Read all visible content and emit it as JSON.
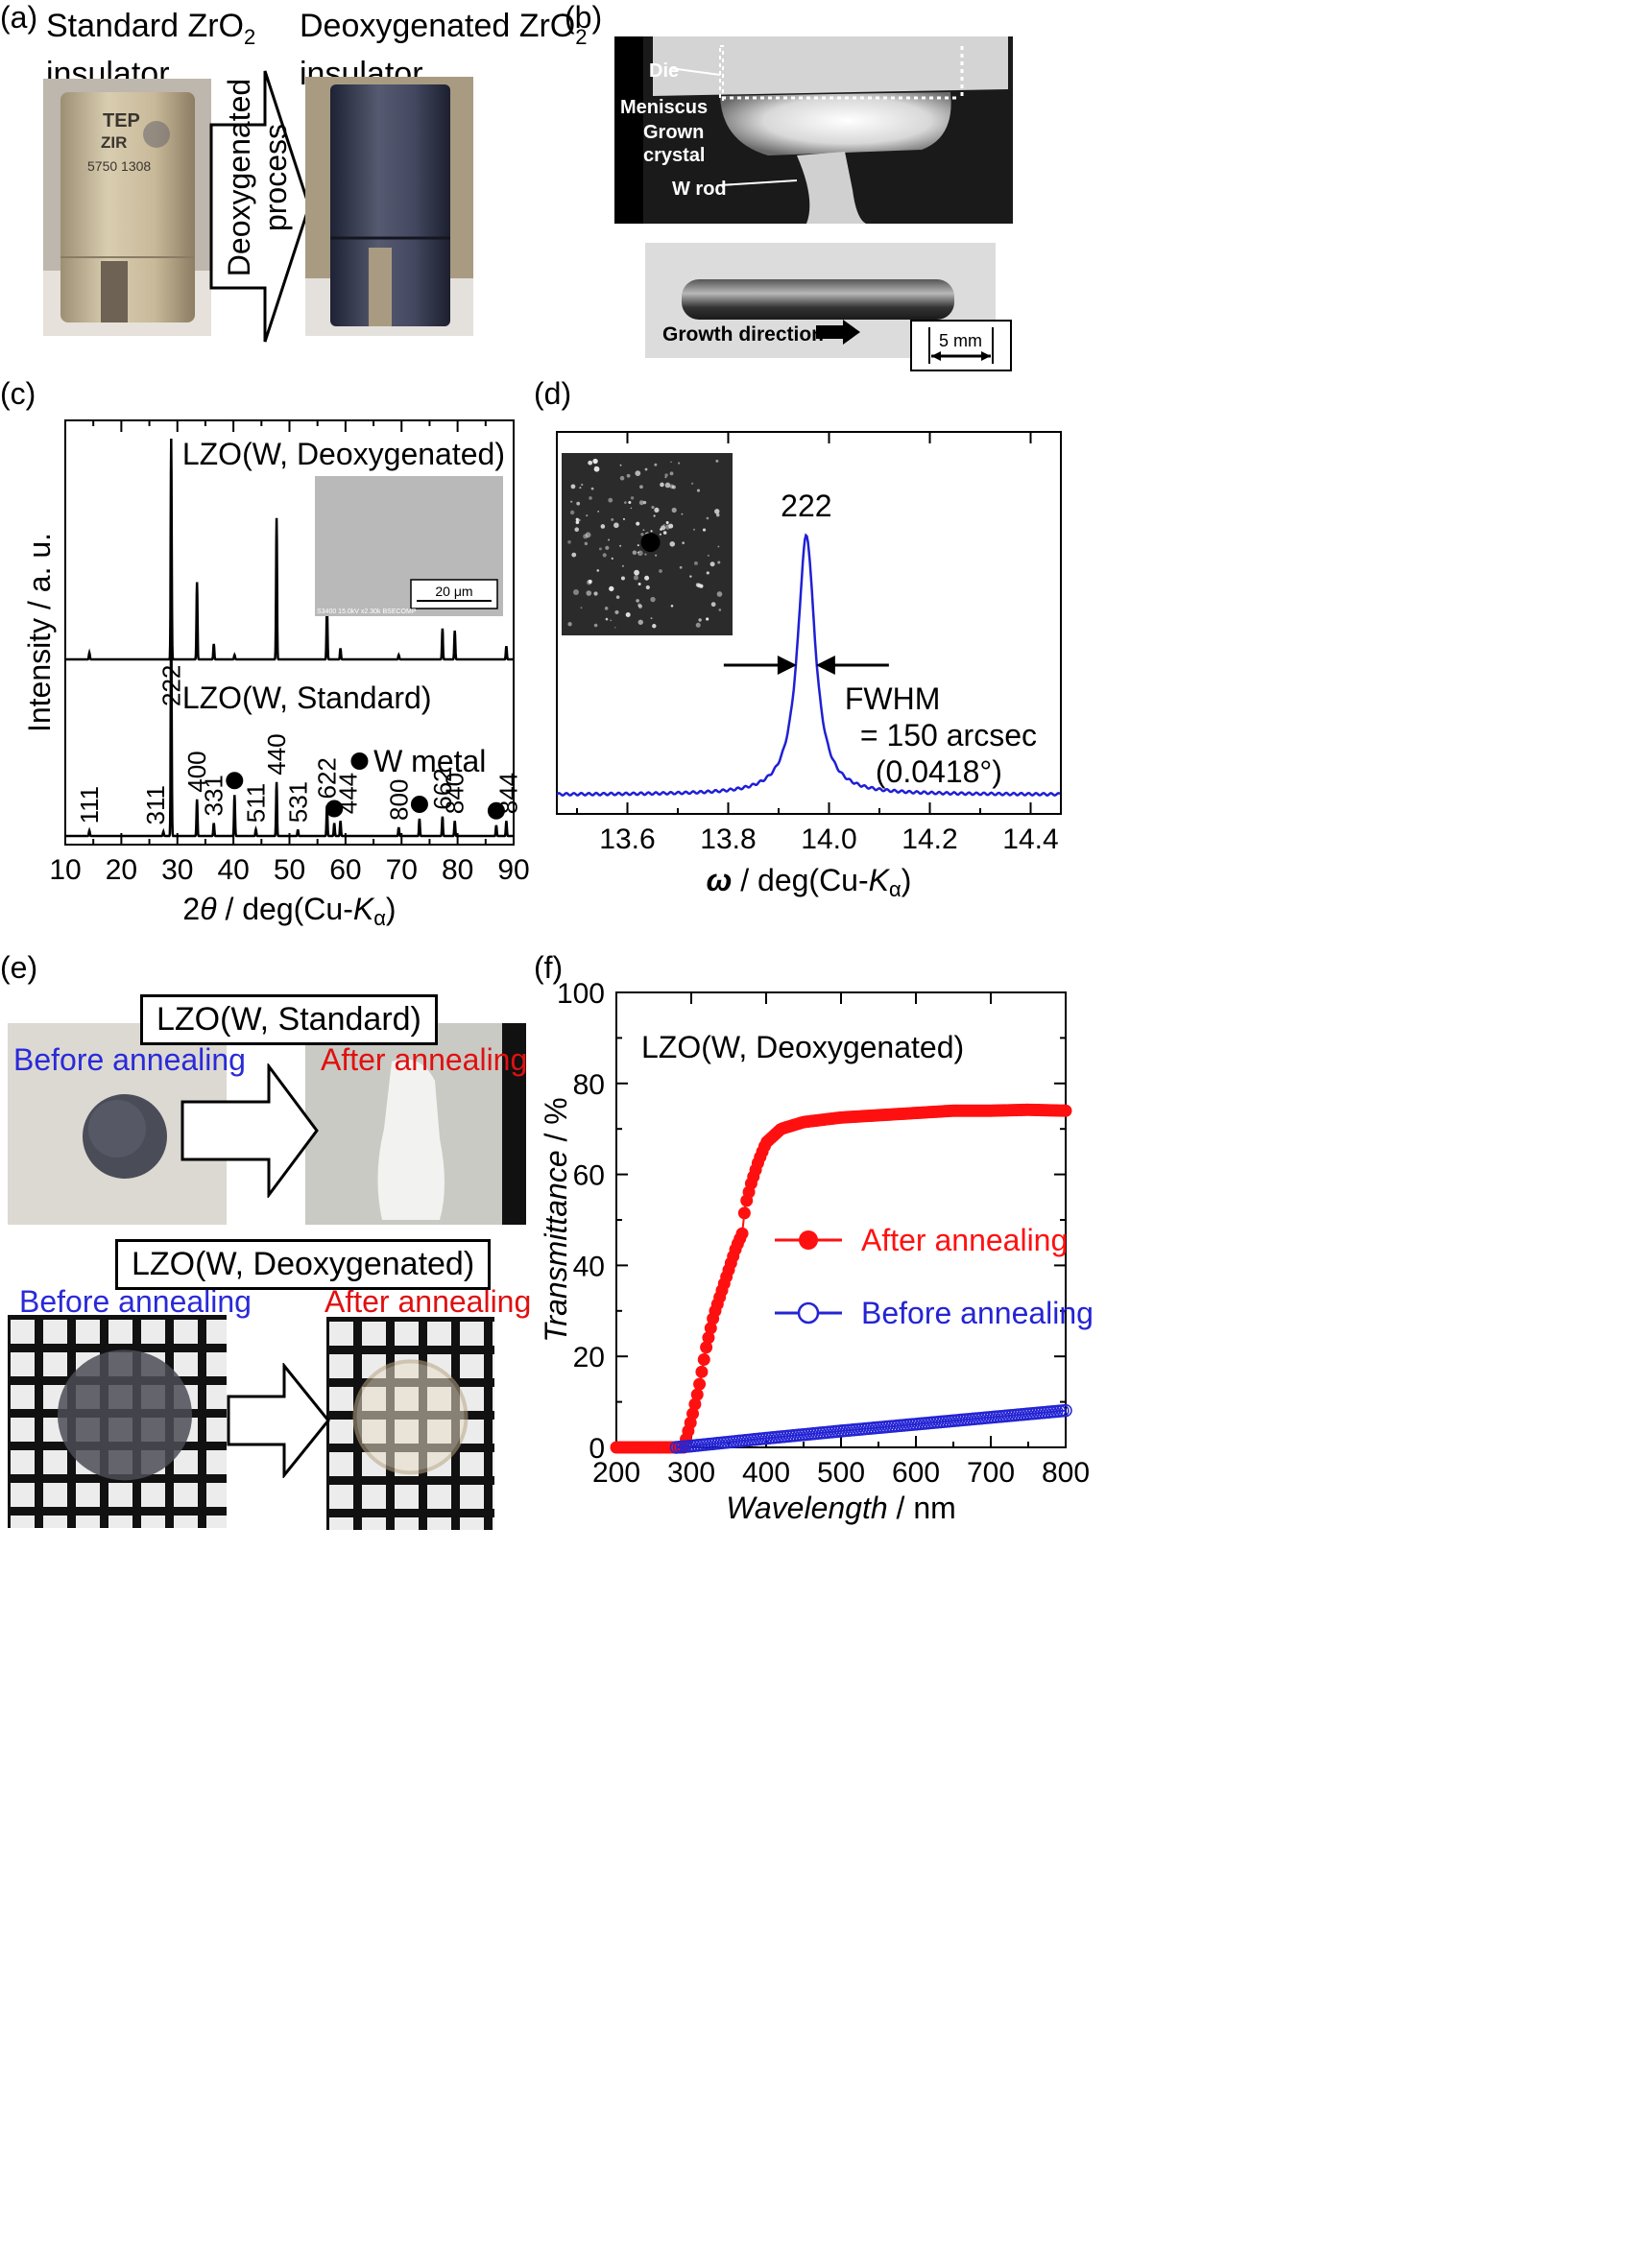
{
  "panels": {
    "a": {
      "label": "(a)",
      "left_title_1": "Standard ZrO",
      "left_title_sub": "2",
      "left_title_2": "insulator",
      "right_title_1": "Deoxygenated ZrO",
      "right_title_sub": "2",
      "right_title_2": "insulator",
      "arrow_text_1": "Deoxygenated",
      "arrow_text_2": "process",
      "insulator_print_1": "TEP",
      "insulator_print_2": "ZIR",
      "insulator_print_3": "5750 1308"
    },
    "b": {
      "label": "(b)",
      "die": "Die",
      "meniscus": "Meniscus",
      "grown": "Grown",
      "crystal": "crystal",
      "wrod": "W rod",
      "growth_direction": "Growth direction",
      "scale": "5 mm"
    },
    "c": {
      "label": "(c)"
    },
    "d": {
      "label": "(d)"
    },
    "e": {
      "label": "(e)",
      "standard_box": "LZO(W, Standard)",
      "deoxy_box": "LZO(W, Deoxygenated)",
      "before_1": "Before annealing",
      "after_1": "After annealing",
      "before_2": "Before annealing",
      "after_2": "After annealing",
      "before_color": "#2a2ad8",
      "after_color": "#e01010"
    },
    "f": {
      "label": "(f)"
    }
  },
  "chart_data": [
    {
      "id": "c",
      "type": "line",
      "xlabel_pre": "2",
      "xlabel_theta": "θ",
      "xlabel_post": " / deg(Cu-",
      "xlabel_k": "K",
      "xlabel_alpha": "α",
      "xlabel_close": ")",
      "ylabel": "Intensity / a. u.",
      "xlim": [
        10,
        90
      ],
      "xticks": [
        10,
        20,
        30,
        40,
        50,
        60,
        70,
        80,
        90
      ],
      "series": [
        {
          "name": "LZO(W, Deoxygenated)",
          "baseline": 0.0,
          "peaks": [
            [
              14.3,
              0.03
            ],
            [
              28.9,
              1.0
            ],
            [
              33.5,
              0.35
            ],
            [
              36.5,
              0.07
            ],
            [
              40.2,
              0.02
            ],
            [
              47.7,
              0.64
            ],
            [
              56.7,
              0.25
            ],
            [
              59.1,
              0.05
            ],
            [
              69.5,
              0.02
            ],
            [
              77.3,
              0.14
            ],
            [
              79.5,
              0.13
            ],
            [
              88.7,
              0.06
            ]
          ]
        },
        {
          "name": "LZO(W, Standard)",
          "baseline": 0.0,
          "peaks": [
            [
              14.3,
              0.025
            ],
            [
              27.5,
              0.02
            ],
            [
              28.9,
              1.0
            ],
            [
              33.5,
              0.17
            ],
            [
              36.5,
              0.06
            ],
            [
              40.2,
              0.19
            ],
            [
              44.0,
              0.03
            ],
            [
              47.7,
              0.25
            ],
            [
              51.5,
              0.03
            ],
            [
              56.7,
              0.14
            ],
            [
              58.0,
              0.06
            ],
            [
              59.1,
              0.07
            ],
            [
              69.5,
              0.04
            ],
            [
              73.2,
              0.08
            ],
            [
              77.3,
              0.09
            ],
            [
              79.5,
              0.07
            ],
            [
              86.9,
              0.05
            ],
            [
              88.7,
              0.07
            ]
          ]
        }
      ],
      "peak_labels": [
        {
          "text": "111",
          "x": 14.3
        },
        {
          "text": "311",
          "x": 27.5
        },
        {
          "text": "222",
          "x": 28.9
        },
        {
          "text": "400",
          "x": 33.5
        },
        {
          "text": "331",
          "x": 36.5
        },
        {
          "text": "511",
          "x": 44.0
        },
        {
          "text": "440",
          "x": 47.7
        },
        {
          "text": "531",
          "x": 51.5
        },
        {
          "text": "622",
          "x": 56.7
        },
        {
          "text": "444",
          "x": 59.1
        },
        {
          "text": "800",
          "x": 69.5
        },
        {
          "text": "662",
          "x": 77.3
        },
        {
          "text": "840",
          "x": 79.5
        },
        {
          "text": "844",
          "x": 88.7
        }
      ],
      "w_metal_markers": [
        40.2,
        58.0,
        73.2,
        86.9
      ],
      "legend_text": "W metal",
      "inset_scale": "20 μm",
      "inset_caption": "S3400 15.0kV x2.30k BSECOMP"
    },
    {
      "id": "d",
      "type": "line",
      "xlabel_omega": "ω",
      "xlabel_post": " / deg(Cu-",
      "xlabel_k": "K",
      "xlabel_alpha": "α",
      "xlabel_close": ")",
      "xlim": [
        13.46,
        14.46
      ],
      "xticks": [
        13.6,
        13.8,
        14.0,
        14.2,
        14.4
      ],
      "peak_center": 13.955,
      "fwhm_deg": 0.0418,
      "peak_label": "222",
      "annotation_1": "FWHM",
      "annotation_2": "= 150 arcsec",
      "annotation_3": "(0.0418°)",
      "line_color": "#1f1fd6"
    },
    {
      "id": "f",
      "type": "scatter",
      "title": "LZO(W, Deoxygenated)",
      "xlabel_italic": "Wavelength",
      "xlabel_unit": " / nm",
      "ylabel_italic": "Transmittance",
      "ylabel_unit": " / %",
      "xlim": [
        200,
        800
      ],
      "ylim": [
        0,
        100
      ],
      "xticks": [
        200,
        300,
        400,
        500,
        600,
        700,
        800
      ],
      "yticks": [
        0,
        20,
        40,
        60,
        80,
        100
      ],
      "series": [
        {
          "name": "After annealing",
          "color": "#ff1010",
          "marker": "filled-circle",
          "x": [
            200,
            290,
            300,
            310,
            320,
            330,
            340,
            350,
            360,
            368,
            372,
            380,
            390,
            400,
            420,
            450,
            500,
            550,
            600,
            650,
            700,
            750,
            800
          ],
          "y": [
            0,
            0,
            6,
            13,
            22,
            29,
            34,
            39,
            44,
            47,
            53,
            58,
            63,
            67,
            70,
            71.5,
            72.5,
            73,
            73.5,
            74,
            74,
            74.2,
            74
          ]
        },
        {
          "name": "Before annealing",
          "color": "#2424d4",
          "marker": "open-circle",
          "x": [
            280,
            300,
            400,
            500,
            600,
            700,
            800
          ],
          "y": [
            0,
            0.3,
            2.0,
            3.6,
            5.1,
            6.6,
            8.1
          ]
        }
      ]
    }
  ]
}
